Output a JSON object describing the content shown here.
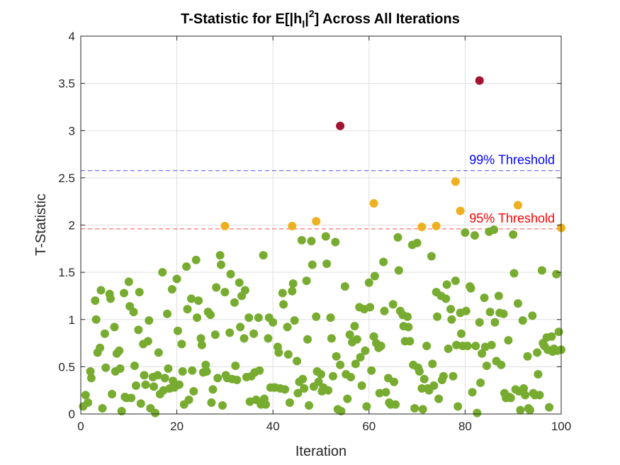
{
  "chart_data": {
    "type": "scatter",
    "title": {
      "prefix": "T-Statistic for E[|h",
      "sub": "l",
      "mid": "|",
      "sup": "2",
      "suffix": "] Across All Iterations"
    },
    "xlabel": "Iteration",
    "ylabel": "T-Statistic",
    "xlim": [
      0,
      100
    ],
    "ylim": [
      0,
      4
    ],
    "xticks": [
      0,
      20,
      40,
      60,
      80,
      100
    ],
    "yticks": [
      0,
      0.5,
      1,
      1.5,
      2,
      2.5,
      3,
      3.5,
      4
    ],
    "grid": true,
    "colors": {
      "normal": "#77ac30",
      "above95": "#edb120",
      "above99": "#a2142f",
      "line99": "#0000ff",
      "line95": "#ff0000"
    },
    "thresholds": [
      {
        "label": "99% Threshold",
        "value": 2.576,
        "color": "#0000ff"
      },
      {
        "label": "95% Threshold",
        "value": 1.96,
        "color": "#ff0000"
      }
    ],
    "points": [
      [
        0.5,
        0.08
      ],
      [
        1,
        0.2
      ],
      [
        1.5,
        0.12
      ],
      [
        2,
        0.45
      ],
      [
        2.2,
        0.38
      ],
      [
        3,
        1.2
      ],
      [
        3.2,
        1.0
      ],
      [
        3.5,
        0.65
      ],
      [
        4,
        0.7
      ],
      [
        4.2,
        1.31
      ],
      [
        4.5,
        0.06
      ],
      [
        5,
        0.85
      ],
      [
        5.2,
        0.49
      ],
      [
        6,
        1.27
      ],
      [
        6.2,
        1.22
      ],
      [
        6.5,
        0.21
      ],
      [
        7,
        0.92
      ],
      [
        7.2,
        0.45
      ],
      [
        7.5,
        0.64
      ],
      [
        8,
        0.67
      ],
      [
        8.2,
        0.48
      ],
      [
        8.5,
        0.03
      ],
      [
        9,
        1.28
      ],
      [
        9.2,
        0.18
      ],
      [
        9.5,
        0.17
      ],
      [
        10,
        1.4
      ],
      [
        10.2,
        1.14
      ],
      [
        10.5,
        0.17
      ],
      [
        11,
        1.08
      ],
      [
        11.2,
        0.51
      ],
      [
        11.5,
        0.3
      ],
      [
        12,
        0.89
      ],
      [
        12.2,
        1.29
      ],
      [
        12.5,
        0.11
      ],
      [
        13,
        0.74
      ],
      [
        13.2,
        0.41
      ],
      [
        13.5,
        0.31
      ],
      [
        14,
        0.77
      ],
      [
        14.2,
        0.99
      ],
      [
        14.5,
        0.06
      ],
      [
        15,
        0.39
      ],
      [
        15.2,
        0.29
      ],
      [
        15.5,
        0.01
      ],
      [
        16,
        0.41
      ],
      [
        16.2,
        0.65
      ],
      [
        16.5,
        0.21
      ],
      [
        17,
        1.5
      ],
      [
        17.2,
        0.25
      ],
      [
        17.5,
        0.38
      ],
      [
        18,
        1.06
      ],
      [
        18.2,
        0.48
      ],
      [
        18.5,
        0.27
      ],
      [
        19,
        1.32
      ],
      [
        19.2,
        0.35
      ],
      [
        19.5,
        0.28
      ],
      [
        20,
        1.43
      ],
      [
        20.2,
        0.88
      ],
      [
        20.5,
        0.31
      ],
      [
        21,
        0.74
      ],
      [
        21.2,
        0.45
      ],
      [
        21.5,
        0.1
      ],
      [
        22,
        1.56
      ],
      [
        22.2,
        1.11
      ],
      [
        22.5,
        0.15
      ],
      [
        23,
        1.22
      ],
      [
        23.2,
        0.46
      ],
      [
        23.5,
        0.24
      ],
      [
        24,
        1.63
      ],
      [
        24.2,
        1.02
      ],
      [
        24.5,
        1.2
      ],
      [
        25,
        0.8
      ],
      [
        25.2,
        0.73
      ],
      [
        25.5,
        0.44
      ],
      [
        26,
        0.52
      ],
      [
        26.2,
        0.45
      ],
      [
        26.5,
        1.08
      ],
      [
        27,
        1.05
      ],
      [
        27.2,
        0.12
      ],
      [
        27.5,
        0.26
      ],
      [
        28,
        0.84
      ],
      [
        28.2,
        1.34
      ],
      [
        28.5,
        0.38
      ],
      [
        29,
        1.68
      ],
      [
        29.2,
        1.58
      ],
      [
        29.5,
        0.09
      ],
      [
        30,
        1.29
      ],
      [
        30.2,
        0.41
      ],
      [
        30.5,
        0.38
      ],
      [
        31,
        0.86
      ],
      [
        31.2,
        1.48
      ],
      [
        31.5,
        0.37
      ],
      [
        32,
        1.18
      ],
      [
        32.2,
        0.51
      ],
      [
        32.5,
        0.36
      ],
      [
        33,
        1.39
      ],
      [
        33.2,
        0.92
      ],
      [
        33.5,
        1.25
      ],
      [
        34,
        0.8
      ],
      [
        34.2,
        1.31
      ],
      [
        34.5,
        0.39
      ],
      [
        35,
        1.02
      ],
      [
        35.2,
        0.13
      ],
      [
        35.5,
        0.4
      ],
      [
        36,
        0.85
      ],
      [
        36.2,
        0.44
      ],
      [
        36.5,
        0.15
      ],
      [
        37,
        1.02
      ],
      [
        37.2,
        0.46
      ],
      [
        37.5,
        0.1
      ],
      [
        38,
        1.68
      ],
      [
        38.2,
        0.16
      ],
      [
        38.5,
        0.1
      ],
      [
        39,
        0.8
      ],
      [
        39.2,
        1.02
      ],
      [
        39.5,
        0.28
      ],
      [
        40,
        0.97
      ],
      [
        40.2,
        0.28
      ],
      [
        40.5,
        0.28
      ],
      [
        41,
        0.71
      ],
      [
        41.2,
        0.65
      ],
      [
        41.5,
        0.27
      ],
      [
        42,
        1.28
      ],
      [
        42.2,
        1.16
      ],
      [
        42.5,
        0.26
      ],
      [
        43,
        0.92
      ],
      [
        43.2,
        0.63
      ],
      [
        43.5,
        0.12
      ],
      [
        44,
        1.3
      ],
      [
        44.2,
        1.38
      ],
      [
        44.5,
        0.99
      ],
      [
        45,
        0.56
      ],
      [
        45.2,
        0.22
      ],
      [
        45.5,
        0.34
      ],
      [
        46,
        1.84
      ],
      [
        46.2,
        0.37
      ],
      [
        46.5,
        0.27
      ],
      [
        47,
        1.41
      ],
      [
        47.2,
        0.79
      ],
      [
        47.5,
        0.09
      ],
      [
        48,
        1.83
      ],
      [
        48.2,
        1.58
      ],
      [
        48.5,
        0.29
      ],
      [
        49,
        1.03
      ],
      [
        49.2,
        0.45
      ],
      [
        49.5,
        0.34
      ],
      [
        50,
        0.42
      ],
      [
        50.2,
        0.24
      ],
      [
        50.5,
        0.28
      ],
      [
        51,
        1.88
      ],
      [
        51.2,
        1.59
      ],
      [
        51.5,
        0.25
      ],
      [
        52,
        1.02
      ],
      [
        52.2,
        0.8
      ],
      [
        52.5,
        0.4
      ],
      [
        53,
        1.82
      ],
      [
        53.2,
        0.61
      ],
      [
        53.5,
        0.05
      ],
      [
        54,
        0.52
      ],
      [
        54.2,
        0.03
      ],
      [
        55,
        1.35
      ],
      [
        55.2,
        0.42
      ],
      [
        55.5,
        0.16
      ],
      [
        56,
        0.84
      ],
      [
        56.2,
        0.39
      ],
      [
        56.5,
        0.76
      ],
      [
        57,
        0.93
      ],
      [
        57.2,
        0.53
      ],
      [
        57.5,
        0.79
      ],
      [
        58,
        1.13
      ],
      [
        58.2,
        0.6
      ],
      [
        58.5,
        0.3
      ],
      [
        59,
        1.11
      ],
      [
        59.2,
        0.67
      ],
      [
        59.5,
        0.08
      ],
      [
        60,
        1.39
      ],
      [
        60.2,
        1.13
      ],
      [
        60.5,
        0.46
      ],
      [
        61,
        0.82
      ],
      [
        61.2,
        1.46
      ],
      [
        61.5,
        0.75
      ],
      [
        62,
        0.7
      ],
      [
        62.2,
        0.22
      ],
      [
        62.5,
        0.72
      ],
      [
        63,
        1.61
      ],
      [
        63.2,
        1.09
      ],
      [
        63.5,
        0.23
      ],
      [
        64,
        0.38
      ],
      [
        64.2,
        0.12
      ],
      [
        64.5,
        0.1
      ],
      [
        65,
        1.16
      ],
      [
        65.2,
        0.34
      ],
      [
        65.5,
        0.1
      ],
      [
        66,
        1.87
      ],
      [
        66.2,
        1.52
      ],
      [
        66.5,
        1.09
      ],
      [
        67,
        1.05
      ],
      [
        67.2,
        0.93
      ],
      [
        67.5,
        0.77
      ],
      [
        68,
        1.03
      ],
      [
        68.2,
        0.92
      ],
      [
        68.5,
        0.77
      ],
      [
        69,
        1.79
      ],
      [
        69.2,
        0.52
      ],
      [
        69.5,
        0.06
      ],
      [
        70,
        1.81
      ],
      [
        70.2,
        0.49
      ],
      [
        70.5,
        0.45
      ],
      [
        71,
        0.27
      ],
      [
        71.2,
        0.05
      ],
      [
        71.5,
        0.37
      ],
      [
        72,
        0.72
      ],
      [
        72.2,
        0.27
      ],
      [
        72.5,
        0.25
      ],
      [
        73,
        1.67
      ],
      [
        73.2,
        0.53
      ],
      [
        73.5,
        0.3
      ],
      [
        74,
        1.29
      ],
      [
        74.2,
        1.03
      ],
      [
        74.5,
        0.16
      ],
      [
        75,
        1.25
      ],
      [
        75.2,
        0.36
      ],
      [
        75.5,
        0.4
      ],
      [
        76,
        1.22
      ],
      [
        76.2,
        1.37
      ],
      [
        76.5,
        0.69
      ],
      [
        77,
        1.11
      ],
      [
        77.2,
        1.0
      ],
      [
        77.5,
        0.4
      ],
      [
        78,
        1.41
      ],
      [
        78.2,
        0.73
      ],
      [
        78.5,
        0.08
      ],
      [
        79,
        1.07
      ],
      [
        79.2,
        0.85
      ],
      [
        79.5,
        0.72
      ],
      [
        80,
        1.92
      ],
      [
        80.2,
        1.09
      ],
      [
        80.5,
        0.72
      ],
      [
        81,
        1.35
      ],
      [
        81.2,
        1.33
      ],
      [
        81.5,
        0.23
      ],
      [
        82,
        1.89
      ],
      [
        82.2,
        0.72
      ],
      [
        82.5,
        0.01
      ],
      [
        83,
        0.97
      ],
      [
        83.2,
        0.33
      ],
      [
        83.5,
        0.64
      ],
      [
        84,
        1.23
      ],
      [
        84.2,
        0.71
      ],
      [
        84.5,
        0.51
      ],
      [
        85,
        1.93
      ],
      [
        85.2,
        1.08
      ],
      [
        85.5,
        0.73
      ],
      [
        86,
        1.95
      ],
      [
        86.2,
        0.97
      ],
      [
        86.5,
        0.56
      ],
      [
        87,
        1.25
      ],
      [
        87.2,
        1.07
      ],
      [
        87.5,
        0.52
      ],
      [
        88,
        1.06
      ],
      [
        88.2,
        0.22
      ],
      [
        88.5,
        0.17
      ],
      [
        89,
        0.78
      ],
      [
        89.2,
        0.18
      ],
      [
        89.5,
        0.17
      ],
      [
        90,
        1.9
      ],
      [
        90.2,
        1.49
      ],
      [
        90.5,
        0.26
      ],
      [
        91,
        1.17
      ],
      [
        91.2,
        0.24
      ],
      [
        91.5,
        0.04
      ],
      [
        92,
        0.99
      ],
      [
        92.2,
        0.27
      ],
      [
        92.5,
        0.2
      ],
      [
        93,
        0.61
      ],
      [
        93.2,
        0.06
      ],
      [
        93.5,
        0.04
      ],
      [
        94,
        1.04
      ],
      [
        94.2,
        0.22
      ],
      [
        94.5,
        0.2
      ],
      [
        95,
        0.65
      ],
      [
        95.2,
        0.42
      ],
      [
        95.5,
        0.2
      ],
      [
        96,
        1.52
      ],
      [
        96.2,
        0.75
      ],
      [
        96.5,
        0.72
      ],
      [
        97,
        0.81
      ],
      [
        97.2,
        0.68
      ],
      [
        97.5,
        0.07
      ],
      [
        98,
        0.82
      ],
      [
        98.2,
        0.66
      ],
      [
        98.5,
        0.69
      ],
      [
        99,
        1.48
      ],
      [
        99.2,
        0.67
      ],
      [
        99.5,
        0.87
      ],
      [
        100,
        0.68
      ],
      [
        30,
        1.99
      ],
      [
        44,
        1.99
      ],
      [
        49,
        2.04
      ],
      [
        61,
        2.23
      ],
      [
        71,
        1.98
      ],
      [
        74,
        1.99
      ],
      [
        78,
        2.46
      ],
      [
        79,
        2.15
      ],
      [
        91,
        2.21
      ],
      [
        100,
        1.97
      ],
      [
        54,
        3.05
      ],
      [
        83,
        3.53
      ]
    ]
  }
}
